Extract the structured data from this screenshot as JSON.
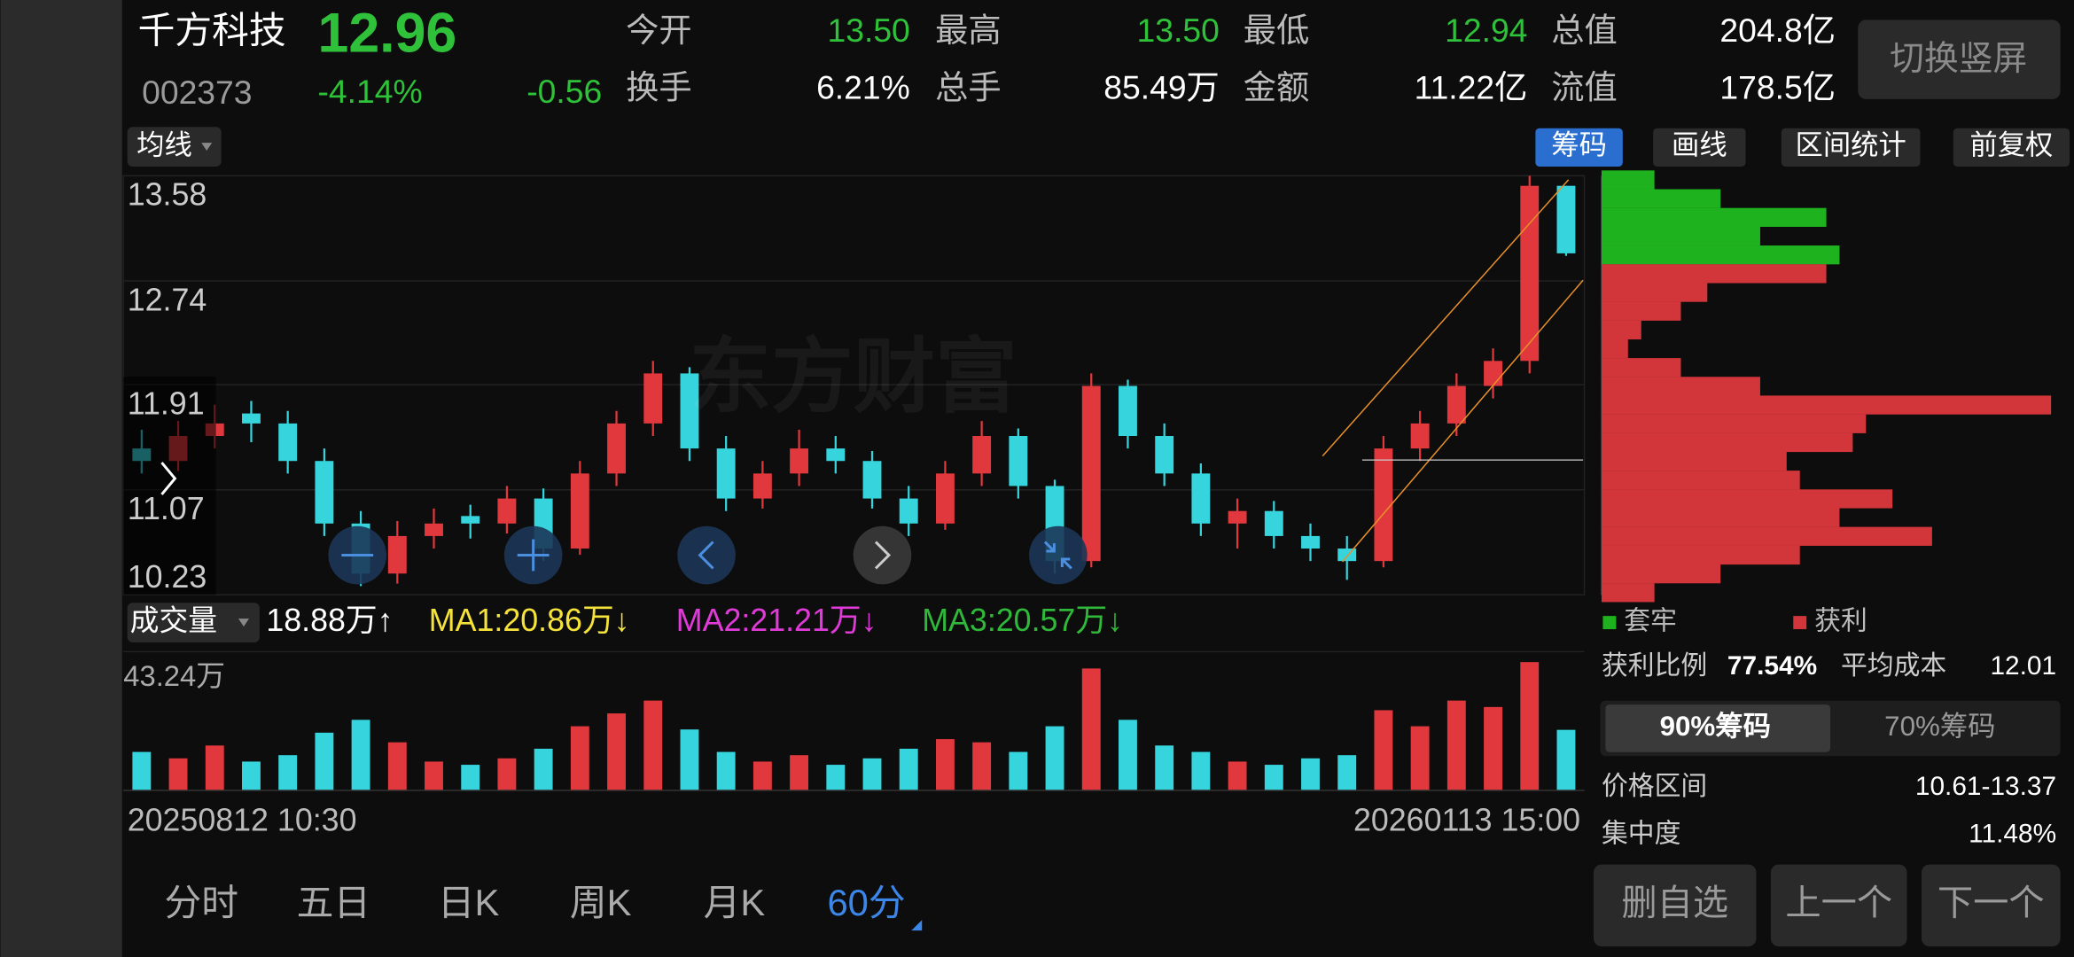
{
  "header": {
    "name": "千方科技",
    "price": "12.96",
    "code": "002373",
    "change_pct": "-4.14%",
    "change": "-0.56",
    "stats": [
      [
        {
          "label": "今开",
          "value": "13.50",
          "color": "#2fc13a"
        },
        {
          "label": "最高",
          "value": "13.50",
          "color": "#2fc13a"
        },
        {
          "label": "最低",
          "value": "12.94",
          "color": "#2fc13a"
        },
        {
          "label": "总值",
          "value": "204.8亿",
          "color": "#ffffff"
        }
      ],
      [
        {
          "label": "换手",
          "value": "6.21%",
          "color": "#ffffff"
        },
        {
          "label": "总手",
          "value": "85.49万",
          "color": "#ffffff"
        },
        {
          "label": "金额",
          "value": "11.22亿",
          "color": "#ffffff"
        },
        {
          "label": "流值",
          "value": "178.5亿",
          "color": "#ffffff"
        }
      ]
    ],
    "button": "切换竖屏"
  },
  "toolbar": {
    "ma": "均线",
    "buttons": [
      "筹码",
      "画线",
      "区间统计",
      "前复权"
    ],
    "active": 0
  },
  "watermark": "东方财富",
  "chart_data": [
    {
      "type": "candlestick",
      "up_color": "#e0383c",
      "down_color": "#36d4dc",
      "ylim": [
        10.23,
        13.58
      ],
      "yticks": [
        13.58,
        12.74,
        11.91,
        11.07,
        10.23
      ],
      "candles": [
        [
          11.4,
          11.55,
          11.2,
          11.3
        ],
        [
          11.3,
          11.62,
          11.22,
          11.5
        ],
        [
          11.5,
          11.75,
          11.4,
          11.6
        ],
        [
          11.68,
          11.78,
          11.45,
          11.6
        ],
        [
          11.6,
          11.7,
          11.2,
          11.3
        ],
        [
          11.3,
          11.4,
          10.7,
          10.8
        ],
        [
          10.8,
          10.9,
          10.3,
          10.4
        ],
        [
          10.4,
          10.82,
          10.32,
          10.7
        ],
        [
          10.7,
          10.92,
          10.6,
          10.8
        ],
        [
          10.86,
          10.95,
          10.68,
          10.8
        ],
        [
          10.8,
          11.1,
          10.72,
          11.0
        ],
        [
          11.0,
          11.08,
          10.5,
          10.6
        ],
        [
          10.6,
          11.3,
          10.55,
          11.2
        ],
        [
          11.2,
          11.7,
          11.1,
          11.6
        ],
        [
          11.6,
          12.1,
          11.5,
          12.0
        ],
        [
          12.0,
          12.05,
          11.3,
          11.4
        ],
        [
          11.4,
          11.5,
          10.9,
          11.0
        ],
        [
          11.0,
          11.3,
          10.92,
          11.2
        ],
        [
          11.2,
          11.55,
          11.1,
          11.4
        ],
        [
          11.4,
          11.5,
          11.2,
          11.3
        ],
        [
          11.3,
          11.38,
          10.92,
          11.0
        ],
        [
          11.0,
          11.1,
          10.7,
          10.8
        ],
        [
          10.8,
          11.3,
          10.75,
          11.2
        ],
        [
          11.2,
          11.62,
          11.1,
          11.5
        ],
        [
          11.5,
          11.56,
          11.0,
          11.1
        ],
        [
          11.1,
          11.15,
          10.4,
          10.5
        ],
        [
          10.5,
          12.0,
          10.45,
          11.9
        ],
        [
          11.9,
          11.95,
          11.4,
          11.5
        ],
        [
          11.5,
          11.6,
          11.1,
          11.2
        ],
        [
          11.2,
          11.28,
          10.7,
          10.8
        ],
        [
          10.8,
          11.0,
          10.6,
          10.9
        ],
        [
          10.9,
          10.98,
          10.6,
          10.7
        ],
        [
          10.7,
          10.8,
          10.5,
          10.6
        ],
        [
          10.6,
          10.7,
          10.35,
          10.5
        ],
        [
          10.5,
          11.5,
          10.45,
          11.4
        ],
        [
          11.4,
          11.7,
          11.3,
          11.6
        ],
        [
          11.6,
          12.0,
          11.5,
          11.9
        ],
        [
          11.9,
          12.2,
          11.8,
          12.1
        ],
        [
          12.1,
          13.58,
          12.0,
          13.5
        ],
        [
          13.5,
          13.5,
          12.94,
          12.96
        ]
      ]
    },
    {
      "type": "bar",
      "title": "成交量",
      "current": "18.88万↑",
      "ma": [
        {
          "label": "MA1:20.86万↓",
          "color": "#f5e23a"
        },
        {
          "label": "MA2:21.21万↓",
          "color": "#e03ad8"
        },
        {
          "label": "MA3:20.57万↓",
          "color": "#2fb83a"
        }
      ],
      "ylim": [
        0,
        43.24
      ],
      "yticks": [
        {
          "value": 43.24,
          "label": "43.24万"
        }
      ],
      "values": [
        12,
        10,
        14,
        9,
        11,
        18,
        22,
        15,
        9,
        8,
        10,
        13,
        20,
        24,
        28,
        19,
        12,
        9,
        11,
        8,
        10,
        13,
        16,
        15,
        12,
        20,
        38,
        22,
        14,
        12,
        9,
        8,
        10,
        11,
        25,
        20,
        28,
        26,
        40,
        18.88
      ],
      "x_labels": [
        "20250812 10:30",
        "20260113 15:00"
      ]
    },
    {
      "type": "chips",
      "prices": [
        13.55,
        13.4,
        13.25,
        13.1,
        12.95,
        12.8,
        12.65,
        12.5,
        12.35,
        12.2,
        12.05,
        11.9,
        11.75,
        11.6,
        11.45,
        11.3,
        11.15,
        11.0,
        10.85,
        10.7,
        10.55,
        10.4,
        10.25
      ],
      "series": [
        {
          "name": "套牢",
          "color": "#1fb21f",
          "values": [
            40,
            90,
            170,
            120,
            180,
            null,
            null,
            null,
            null,
            null,
            null,
            null,
            null,
            null,
            null,
            null,
            null,
            null,
            null,
            null,
            null,
            null,
            null
          ]
        },
        {
          "name": "获利",
          "color": "#d2353a",
          "values": [
            null,
            null,
            null,
            null,
            null,
            170,
            80,
            60,
            30,
            20,
            60,
            120,
            340,
            200,
            190,
            140,
            150,
            220,
            180,
            250,
            150,
            90,
            40
          ]
        }
      ]
    }
  ],
  "panel": {
    "ratios": [
      {
        "label": "获利比例",
        "value": "77.54%"
      },
      {
        "label": "平均成本",
        "value": "12.01"
      }
    ],
    "tabs": [
      "90%筹码",
      "70%筹码"
    ],
    "active": 0,
    "rows": [
      {
        "label": "价格区间",
        "value": "10.61-13.37"
      },
      {
        "label": "集中度",
        "value": "11.48%"
      }
    ],
    "buttons": [
      "删自选",
      "上一个",
      "下一个"
    ]
  },
  "bottom_tabs": {
    "items": [
      "分时",
      "五日",
      "日K",
      "周K",
      "月K",
      "60分"
    ],
    "active": 5
  }
}
